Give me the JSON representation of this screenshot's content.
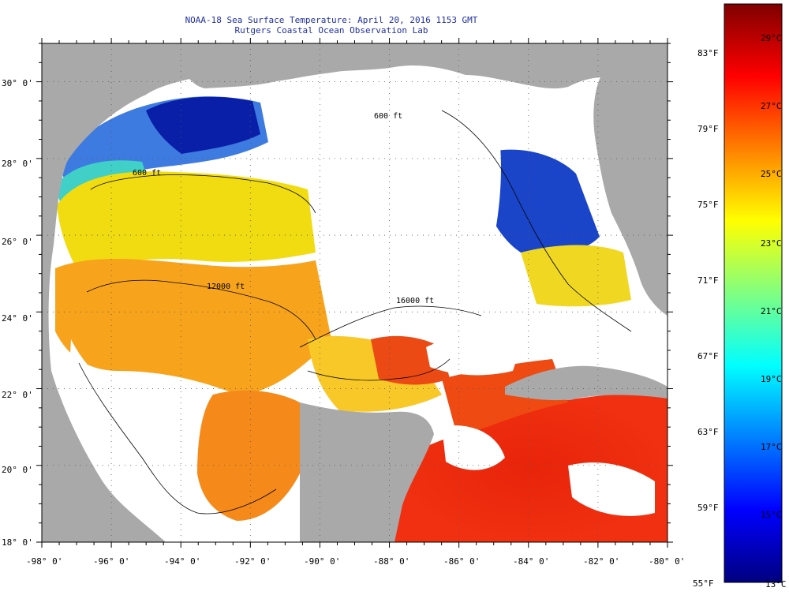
{
  "title": {
    "line1": "NOAA-18 Sea Surface Temperature:  April 20, 2016 1153 GMT",
    "line2": "Rutgers Coastal Ocean Observation Lab"
  },
  "map": {
    "lat_labels": [
      "30° 0'",
      "28° 0'",
      "26° 0'",
      "24° 0'",
      "22° 0'",
      "20° 0'",
      "18° 0'"
    ],
    "lon_labels": [
      "-98° 0'",
      "-96° 0'",
      "-94° 0'",
      "-92° 0'",
      "-90° 0'",
      "-88° 0'",
      "-86° 0'",
      "-84° 0'",
      "-82° 0'",
      "-80° 0'"
    ],
    "lat_range": [
      18,
      31
    ],
    "lon_range": [
      -98,
      -80
    ],
    "contour_labels": [
      "600 ft",
      "600 ft",
      "12000 ft",
      "16000 ft"
    ],
    "colors": {
      "land": "#a9a9a9",
      "cloud": "#ffffff",
      "frame": "#000000"
    }
  },
  "colorbar": {
    "fahrenheit": [
      "83°F",
      "79°F",
      "75°F",
      "71°F",
      "67°F",
      "63°F",
      "59°F",
      "55°F"
    ],
    "celsius": [
      "29°C",
      "27°C",
      "25°C",
      "23°C",
      "21°C",
      "19°C",
      "17°C",
      "15°C",
      "13°C"
    ],
    "stops": [
      "#00007f",
      "#0000ff",
      "#0080ff",
      "#00ffff",
      "#80ff80",
      "#ffff00",
      "#ff8000",
      "#ff0000",
      "#7f0000"
    ]
  }
}
